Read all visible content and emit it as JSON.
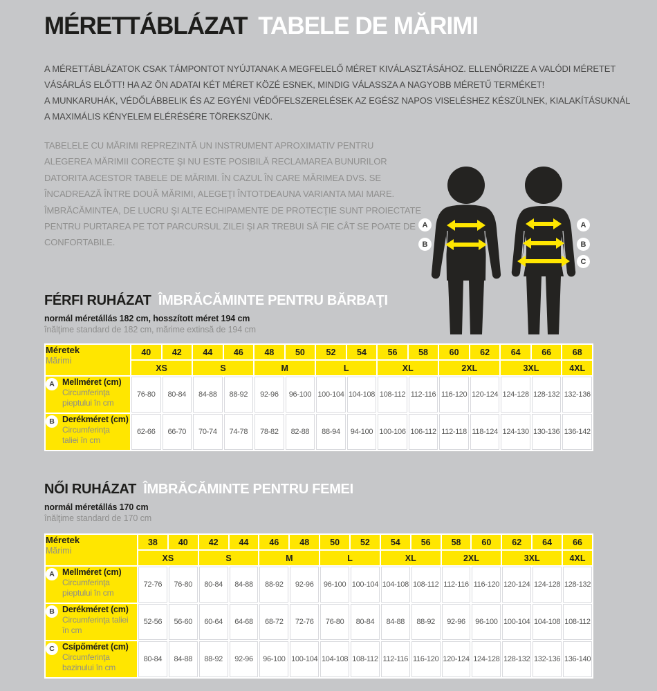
{
  "header": {
    "title_hu": "MÉRETTÁBLÁZAT",
    "title_ro": "TABELE DE MĂRIMI"
  },
  "intro": {
    "hu_lines": [
      "A MÉRETTÁBLÁZATOK CSAK TÁMPONTOT NYÚJTANAK A MEGFELELŐ MÉRET KIVÁLASZTÁSÁHOZ. ELLENŐRIZZE A VALÓDI MÉRETET",
      "VÁSÁRLÁS ELŐTT! HA AZ ÖN ADATAI KÉT MÉRET KÖZÉ ESNEK, MINDIG VÁLASSZA A NAGYOBB MÉRETŰ TERMÉKET!",
      "A MUNKARUHÁK, VÉDŐLÁBBELIK ÉS AZ EGYÉNI VÉDŐFELSZERELÉSEK AZ EGÉSZ NAPOS VISELÉSHEZ KÉSZÜLNEK, KIALAKÍTÁSUKNÁL",
      "A MAXIMÁLIS KÉNYELEM ELÉRÉSÉRE TÖREKSZÜNK."
    ],
    "ro_lines": [
      "TABELELE CU MĂRIMI REPREZINTĂ UN INSTRUMENT APROXIMATIV PENTRU",
      "ALEGEREA MĂRIMII CORECTE ŞI NU ESTE POSIBILĂ RECLAMAREA BUNURILOR",
      "DATORITA ACESTOR TABELE DE MĂRIMI. ÎN CAZUL ÎN CARE MĂRIMEA DVS. SE",
      "ÎNCADREAZĂ ÎNTRE DOUĂ MĂRIMI, ALEGEŢI ÎNTOTDEAUNA VARIANTA MAI MARE.",
      "ÎMBRĂCĂMINTEA, DE LUCRU ŞI ALTE ECHIPAMENTE DE PROTECŢIE SUNT PROIECTATE",
      "PENTRU PURTAREA PE TOT PARCURSUL ZILEI ŞI AR TREBUI SĂ FIE CÂT SE POATE DE",
      "CONFORTABILE."
    ]
  },
  "figure": {
    "male_labels": [
      "A",
      "B"
    ],
    "female_labels": [
      "A",
      "B",
      "C"
    ]
  },
  "colors": {
    "accent_yellow": "#ffe600",
    "background_gray": "#c6c7c9",
    "silhouette_dark": "#242321",
    "text_dark": "#1d1d1b",
    "text_gray": "#8f8f8e",
    "value_text": "#575756"
  },
  "men_section": {
    "title_hu": "FÉRFI RUHÁZAT",
    "title_ro": "ÎMBRĂCĂMINTE PENTRU BĂRBAŢI",
    "subtitle_hu": "normál méretállás 182 cm, hosszított méret 194 cm",
    "subtitle_ro": "înălţime standard de 182 cm, mărime extinsă de 194 cm",
    "table": {
      "corner_label_hu": "Méretek",
      "corner_label_ro": "Mărimi",
      "sizes": [
        "40",
        "42",
        "44",
        "46",
        "48",
        "50",
        "52",
        "54",
        "56",
        "58",
        "60",
        "62",
        "64",
        "66",
        "68"
      ],
      "size_groups": [
        {
          "label": "XS",
          "span": 2
        },
        {
          "label": "S",
          "span": 2
        },
        {
          "label": "M",
          "span": 2
        },
        {
          "label": "L",
          "span": 2
        },
        {
          "label": "XL",
          "span": 2
        },
        {
          "label": "2XL",
          "span": 2
        },
        {
          "label": "3XL",
          "span": 2
        },
        {
          "label": "4XL",
          "span": 1
        }
      ],
      "rows": [
        {
          "key": "A",
          "label_hu": "Mellméret (cm)",
          "label_ro": "Circumferinţa\npieptului în cm",
          "values": [
            "76-80",
            "80-84",
            "84-88",
            "88-92",
            "92-96",
            "96-100",
            "100-104",
            "104-108",
            "108-112",
            "112-116",
            "116-120",
            "120-124",
            "124-128",
            "128-132",
            "132-136"
          ]
        },
        {
          "key": "B",
          "label_hu": "Derékméret (cm)",
          "label_ro": "Circumferinţa\ntaliei în cm",
          "values": [
            "62-66",
            "66-70",
            "70-74",
            "74-78",
            "78-82",
            "82-88",
            "88-94",
            "94-100",
            "100-106",
            "106-112",
            "112-118",
            "118-124",
            "124-130",
            "130-136",
            "136-142"
          ]
        }
      ]
    }
  },
  "women_section": {
    "title_hu": "NŐI RUHÁZAT",
    "title_ro": "ÎMBRĂCĂMINTE PENTRU FEMEI",
    "subtitle_hu": "normál méretállás 170 cm",
    "subtitle_ro": "înălţime standard de 170 cm",
    "table": {
      "corner_label_hu": "Méretek",
      "corner_label_ro": "Mărimi",
      "sizes": [
        "38",
        "40",
        "42",
        "44",
        "46",
        "48",
        "50",
        "52",
        "54",
        "56",
        "58",
        "60",
        "62",
        "64",
        "66"
      ],
      "size_groups": [
        {
          "label": "XS",
          "span": 2
        },
        {
          "label": "S",
          "span": 2
        },
        {
          "label": "M",
          "span": 2
        },
        {
          "label": "L",
          "span": 2
        },
        {
          "label": "XL",
          "span": 2
        },
        {
          "label": "2XL",
          "span": 2
        },
        {
          "label": "3XL",
          "span": 2
        },
        {
          "label": "4XL",
          "span": 1
        }
      ],
      "rows": [
        {
          "key": "A",
          "label_hu": "Mellméret (cm)",
          "label_ro": "Circumferinţa\npieptului în cm",
          "values": [
            "72-76",
            "76-80",
            "80-84",
            "84-88",
            "88-92",
            "92-96",
            "96-100",
            "100-104",
            "104-108",
            "108-112",
            "112-116",
            "116-120",
            "120-124",
            "124-128",
            "128-132"
          ]
        },
        {
          "key": "B",
          "label_hu": "Derékméret (cm)",
          "label_ro": "Circumferinţa taliei\nîn cm",
          "values": [
            "52-56",
            "56-60",
            "60-64",
            "64-68",
            "68-72",
            "72-76",
            "76-80",
            "80-84",
            "84-88",
            "88-92",
            "92-96",
            "96-100",
            "100-104",
            "104-108",
            "108-112"
          ]
        },
        {
          "key": "C",
          "label_hu": "Csípőméret (cm)",
          "label_ro": "Circumferinţa\nbazinului în cm",
          "values": [
            "80-84",
            "84-88",
            "88-92",
            "92-96",
            "96-100",
            "100-104",
            "104-108",
            "108-112",
            "112-116",
            "116-120",
            "120-124",
            "124-128",
            "128-132",
            "132-136",
            "136-140"
          ]
        }
      ]
    }
  }
}
